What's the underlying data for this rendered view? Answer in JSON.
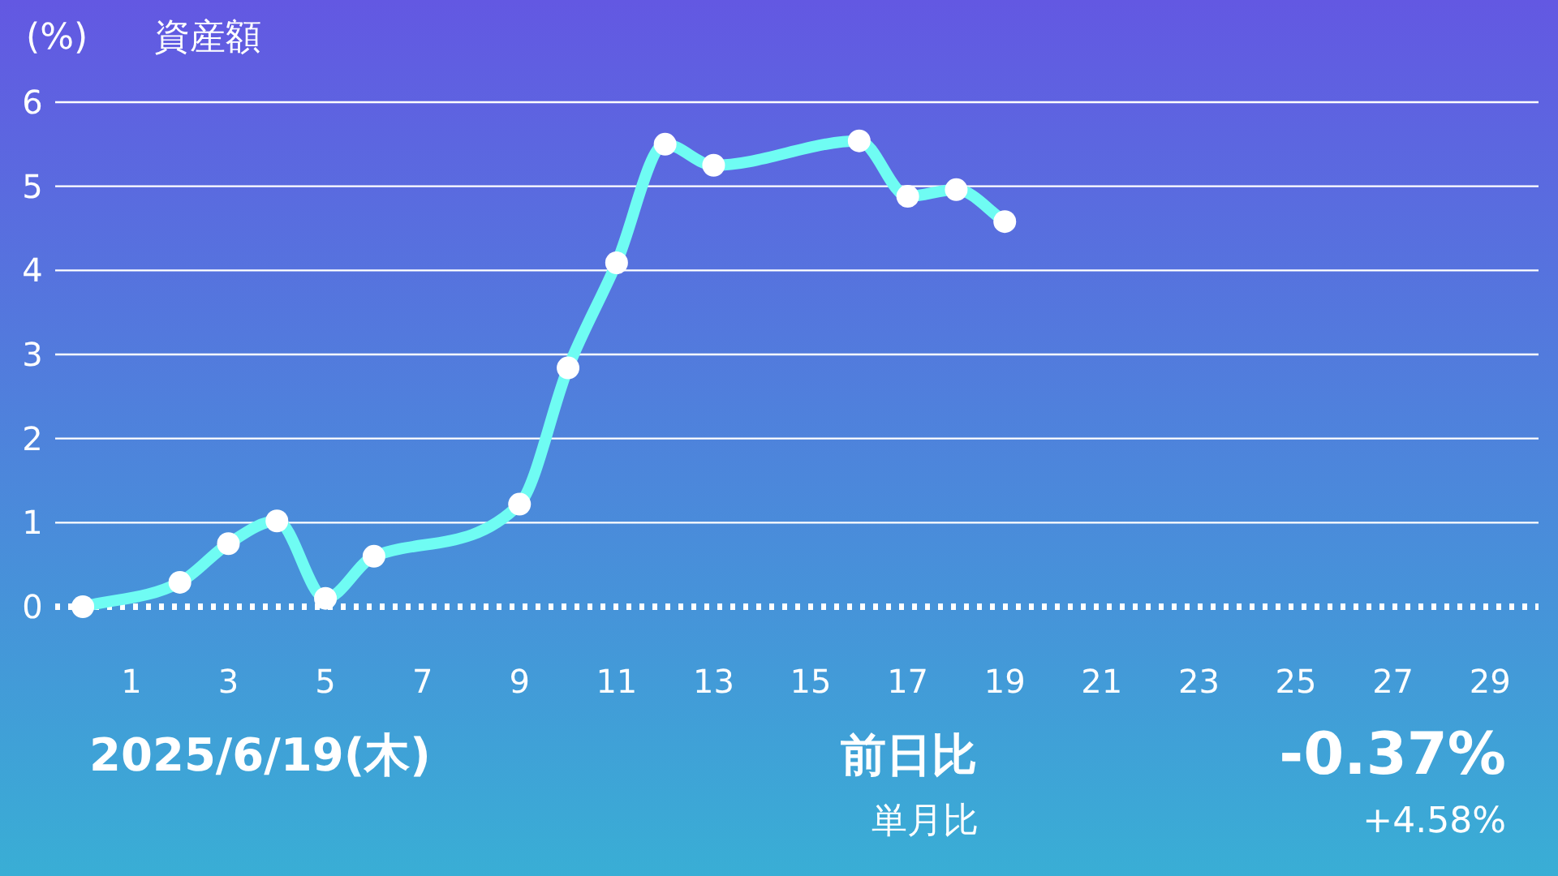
{
  "chart_data": {
    "type": "line",
    "title": "資産額",
    "ylabel": "(%)",
    "x": [
      0,
      2,
      3,
      4,
      5,
      6,
      9,
      10,
      11,
      12,
      13,
      16,
      17,
      18,
      19
    ],
    "series": [
      {
        "color": "#6ffcf3",
        "values": [
          0,
          0.29,
          0.75,
          1.02,
          0.1,
          0.6,
          1.22,
          2.84,
          4.09,
          5.5,
          5.25,
          5.54,
          4.88,
          4.96,
          4.58
        ]
      }
    ],
    "xlim": [
      -0.57,
      30
    ],
    "xticks": [
      1,
      3,
      5,
      7,
      9,
      11,
      13,
      15,
      17,
      19,
      21,
      23,
      25,
      27,
      29
    ],
    "ylim": [
      0,
      6
    ],
    "yticks": [
      0,
      1,
      2,
      3,
      4,
      5,
      6
    ],
    "grid": "y",
    "marker": "circle",
    "line_style": "solid",
    "ref_lines": [
      {
        "axis": "y",
        "value": 0,
        "line_style": "dotted",
        "color": "#ffffff"
      }
    ],
    "annotations": [
      "2025/6/19(木)",
      "前日比",
      "-0.37%",
      "単月比",
      "+4.58%"
    ]
  }
}
